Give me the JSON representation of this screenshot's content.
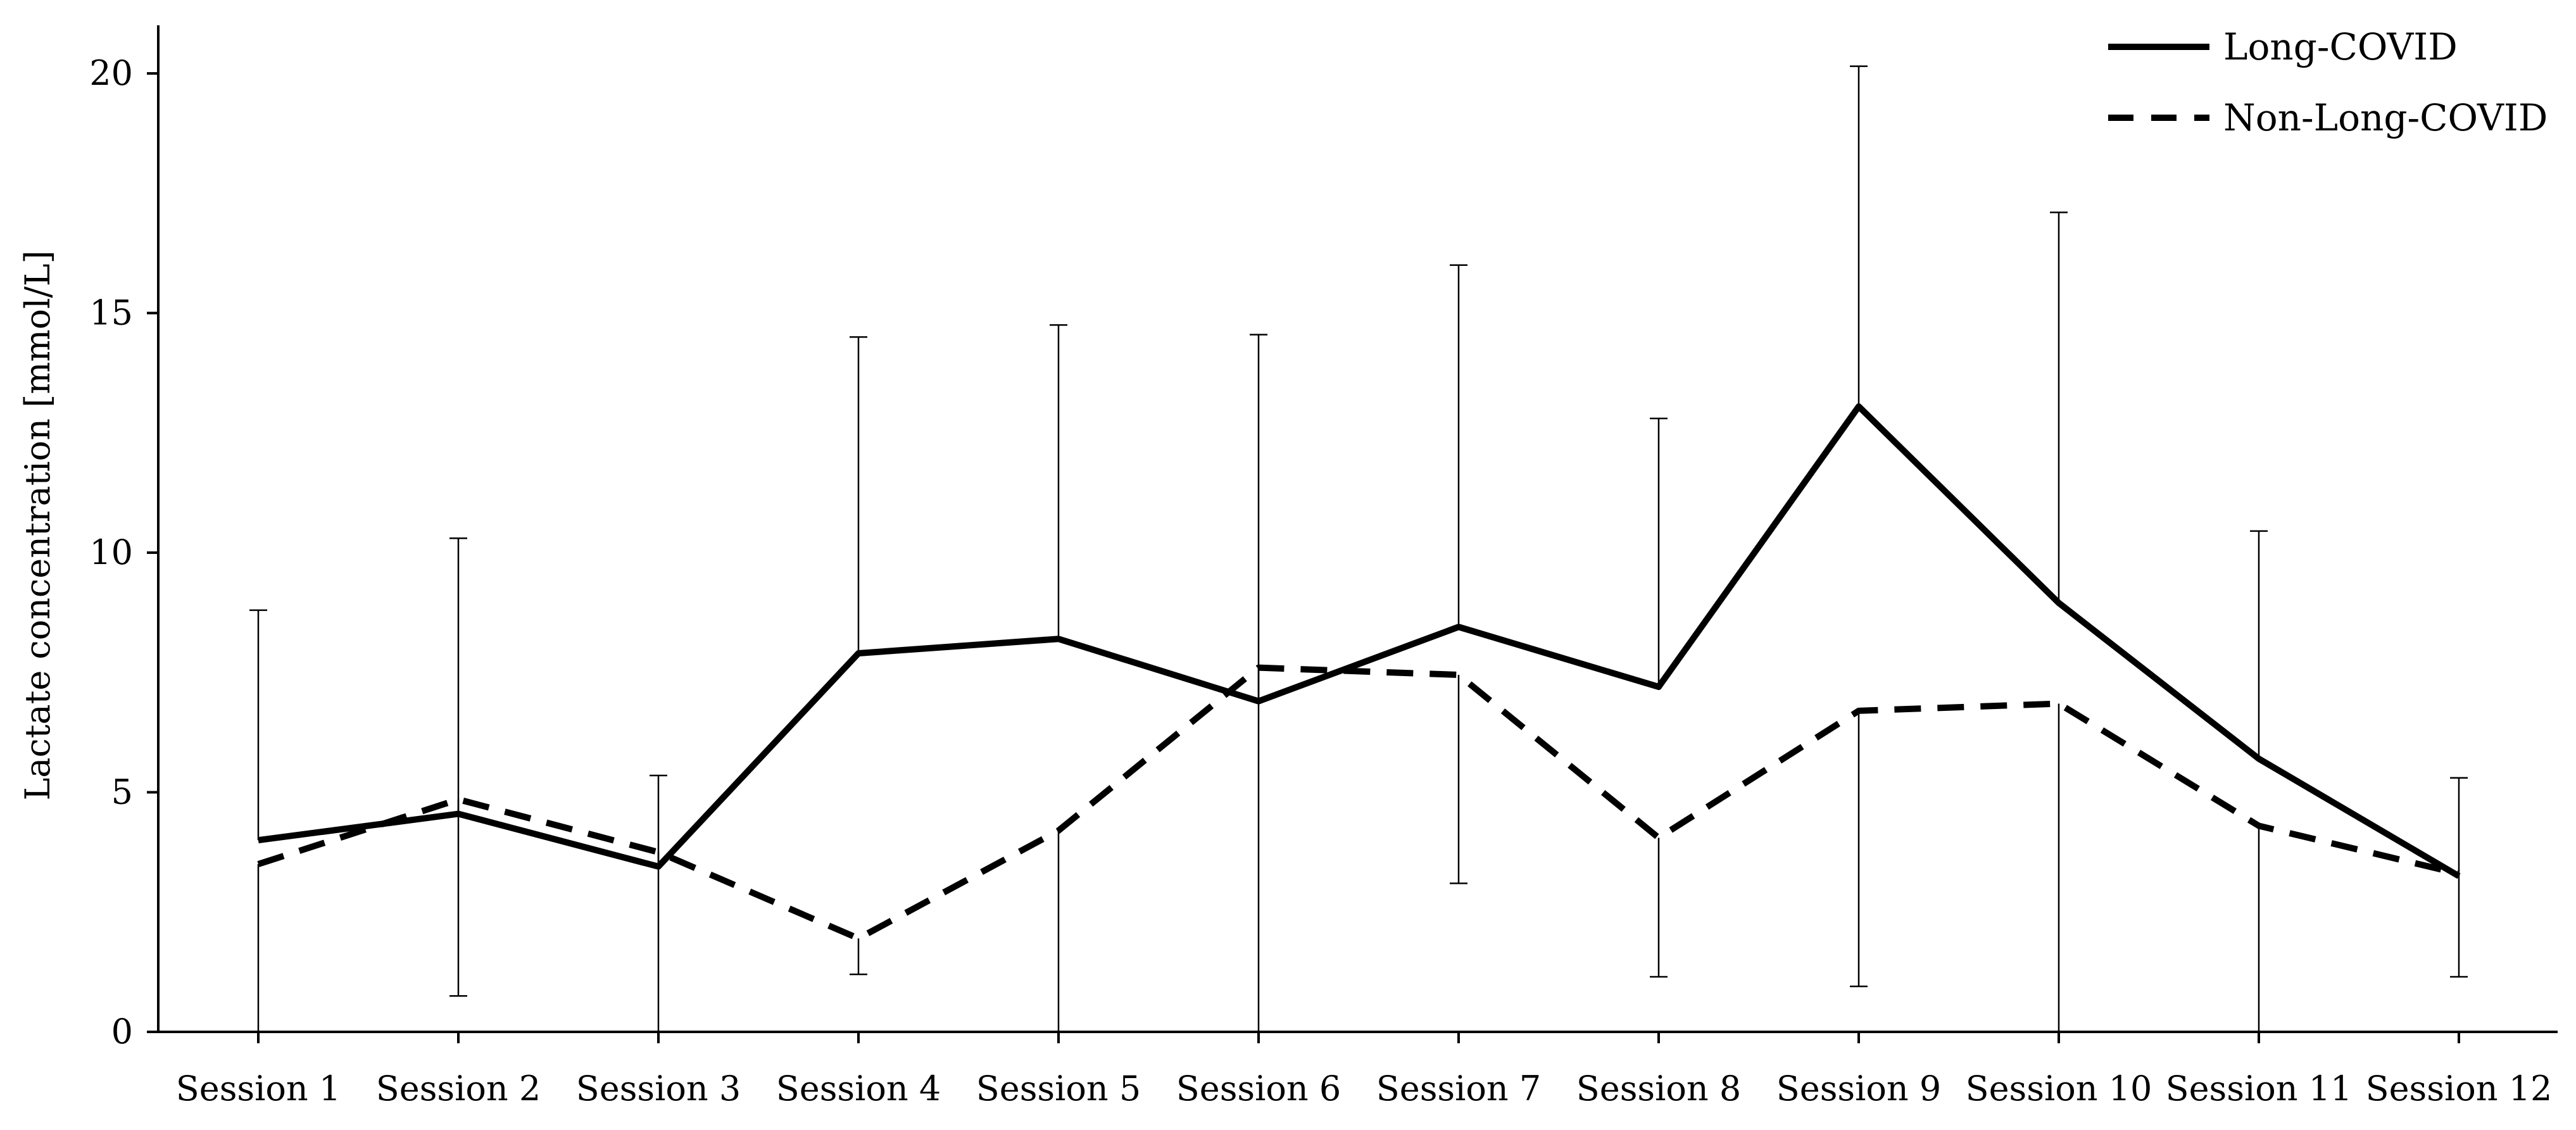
{
  "chart_data": {
    "type": "line",
    "title": "",
    "xlabel": "",
    "ylabel": "Lactate concentration [mmol/L]",
    "ylim": [
      0,
      21
    ],
    "yticks": [
      0,
      5,
      10,
      15,
      20
    ],
    "grid": false,
    "legend_position": "top-right",
    "categories": [
      "Session 1",
      "Session 2",
      "Session 3",
      "Session 4",
      "Session 5",
      "Session 6",
      "Session 7",
      "Session 8",
      "Session 9",
      "Session 10",
      "Session 11",
      "Session 12"
    ],
    "series": [
      {
        "name": "Long-COVID",
        "style": "solid",
        "color": "#000000",
        "values": [
          4.0,
          4.55,
          3.45,
          7.9,
          8.2,
          6.9,
          8.45,
          7.2,
          13.05,
          8.95,
          5.7,
          3.25
        ],
        "error_upper": [
          8.8,
          10.3,
          5.35,
          14.5,
          14.75,
          14.55,
          16.0,
          12.8,
          20.15,
          17.1,
          10.45,
          5.3
        ]
      },
      {
        "name": "Non-Long-COVID",
        "style": "dashed",
        "color": "#000000",
        "values": [
          3.5,
          4.85,
          3.75,
          1.95,
          4.2,
          7.6,
          7.45,
          4.05,
          6.7,
          6.85,
          4.3,
          3.3
        ],
        "error_lower": [
          0.0,
          0.75,
          0.0,
          1.2,
          0.0,
          0.0,
          3.1,
          1.15,
          0.95,
          0.0,
          0.0,
          1.15
        ]
      }
    ]
  }
}
